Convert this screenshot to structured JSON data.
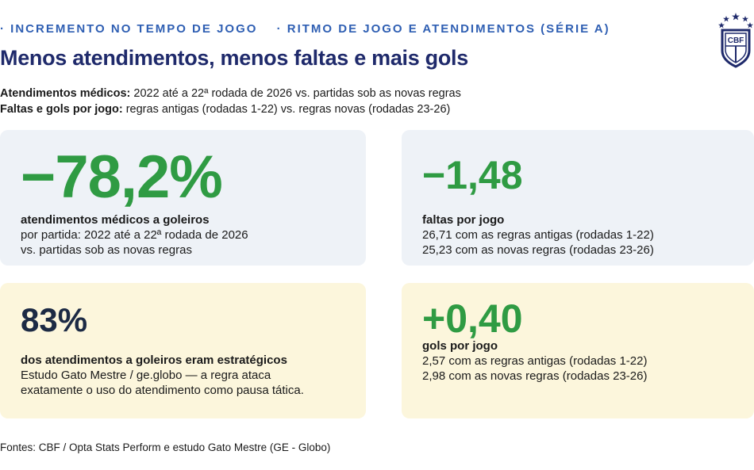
{
  "header": {
    "tag1": "· INCREMENTO NO TEMPO DE JOGO",
    "tag2": "· RITMO DE JOGO E ATENDIMENTOS (SÉRIE A)",
    "title": "Menos atendimentos, menos faltas e mais gols",
    "logo_text": "CBF"
  },
  "subtitle": {
    "line1_bold": "Atendimentos médicos:",
    "line1_text": " 2022 até a 22ª rodada de 2026 vs. partidas sob as novas regras",
    "line2_bold": "Faltas e gols por jogo:",
    "line2_text": " regras antigas (rodadas 1-22) vs. regras novas (rodadas 23-26)"
  },
  "cards": {
    "medical": {
      "value": "−78,2%",
      "label": "atendimentos médicos a goleiros",
      "line1": "por partida: 2022 até a 22ª rodada de 2026",
      "line2": "vs. partidas sob as novas regras"
    },
    "fouls": {
      "value": "−1,48",
      "label": "faltas por jogo",
      "line1": "26,71 com as regras antigas (rodadas 1-22)",
      "line2": "25,23 com as novas regras (rodadas 23-26)"
    },
    "strategic": {
      "value": "83%",
      "label": "dos atendimentos a goleiros eram estratégicos",
      "line1": "Estudo Gato Mestre / ge.globo — a regra ataca",
      "line2": "exatamente o uso do atendimento como pausa tática."
    },
    "goals": {
      "value": "+0,40",
      "label": "gols por jogo",
      "line1": "2,57 com as regras antigas (rodadas 1-22)",
      "line2": "2,98 com as novas regras (rodadas 23-26)"
    }
  },
  "colors": {
    "accent_green": "#2f9b43",
    "title_navy": "#1f2a6b",
    "tag_blue": "#2f5fb3",
    "card_blue": "#eef2f7",
    "card_yellow": "#fcf6dc"
  },
  "footer": {
    "sources": "Fontes: CBF / Opta Stats Perform e estudo Gato Mestre (GE - Globo)"
  }
}
